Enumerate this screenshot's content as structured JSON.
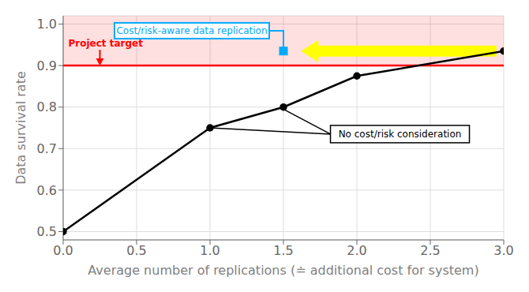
{
  "chart_data": {
    "type": "line",
    "x": [
      0,
      1,
      1.5,
      2,
      3
    ],
    "series": [
      {
        "values": [
          0.5,
          0.75,
          0.8,
          0.875,
          0.935
        ],
        "color": "#000000",
        "marker": "circle"
      }
    ],
    "xlabel": "Average number of replications (≐ additional cost for system)",
    "ylabel": "Data survival rate",
    "xlim": [
      0,
      3
    ],
    "ylim": [
      0.48,
      1.02
    ],
    "xticks": [
      {
        "value": 0,
        "label": "0.0"
      },
      0.5,
      {
        "value": 1.0,
        "label": "1.0"
      },
      1.5,
      {
        "value": 2.0,
        "label": "2.0"
      },
      2.5,
      {
        "value": 3.0,
        "label": "3.0"
      }
    ],
    "yticks": [
      0.5,
      0.6,
      0.7,
      0.8,
      0.9,
      {
        "value": 1.0,
        "label": "1.0"
      }
    ],
    "grid": true,
    "target": {
      "y": 0.9,
      "label": "Project target",
      "color": "#ff0000"
    },
    "highlight": {
      "x": 1.5,
      "y": 0.935,
      "label": "Cost/risk-aware data replication",
      "color": "#00aaff",
      "marker": "square"
    },
    "arrow": {
      "x_start": 2.95,
      "x_end": 1.62,
      "y": 0.935,
      "color": "#ffff00"
    },
    "note": {
      "label": "No cost/risk consideration",
      "points": [
        {
          "x": 1.0,
          "y": 0.75
        },
        {
          "x": 1.5,
          "y": 0.795
        }
      ]
    }
  }
}
